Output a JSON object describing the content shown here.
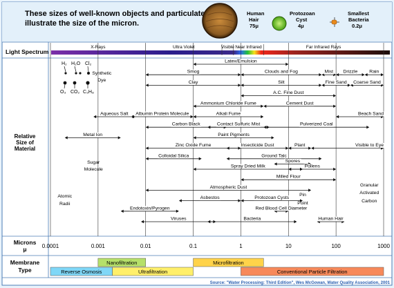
{
  "header": {
    "title_line1": "These sizes of well-known objects and particulates",
    "title_line2": "illustrate the size of the micron.",
    "examples": [
      {
        "name": "hair",
        "label1": "Human",
        "label2": "Hair",
        "size": "75μ",
        "color": "#8a5a22"
      },
      {
        "name": "cyst",
        "label1": "Protozoan",
        "label2": "Cyst",
        "size": "4μ",
        "color": "#7ed321"
      },
      {
        "name": "bacteria",
        "label1": "Smallest",
        "label2": "Bacteria",
        "size": "0.2μ",
        "color": "#e88a1c"
      }
    ]
  },
  "left_labels": {
    "light_spectrum": "Light Spectrum",
    "relative_size": [
      "Relative",
      "Size of",
      "Material"
    ],
    "microns": [
      "Microns",
      "μ"
    ],
    "membrane": [
      "Membrane",
      "Type"
    ]
  },
  "spectrum_bands": [
    {
      "label": "X-Rays",
      "from": 0.0001,
      "to": 0.01
    },
    {
      "label": "Ultra Violet",
      "from": 0.01,
      "to": 0.4
    },
    {
      "label": "Visible",
      "from": 0.4,
      "to": 0.7
    },
    {
      "label": "Near Infrared",
      "from": 0.7,
      "to": 3
    },
    {
      "label": "Far Infrared Rays",
      "from": 3,
      "to": 1000
    }
  ],
  "molecules": {
    "top": [
      "H₂",
      "H₂O",
      "Cl₂"
    ],
    "bottom": [
      "O₃",
      "CO₂",
      "C₃H₈"
    ]
  },
  "axis_ticks": [
    {
      "value": 0.0001,
      "label": "0.0001"
    },
    {
      "value": 0.001,
      "label": "0.001"
    },
    {
      "value": 0.01,
      "label": "0.01"
    },
    {
      "value": 0.1,
      "label": "0.1"
    },
    {
      "value": 1,
      "label": "1"
    },
    {
      "value": 10,
      "label": "10"
    },
    {
      "value": 100,
      "label": "100"
    },
    {
      "value": 1000,
      "label": "1000"
    }
  ],
  "materials": [
    {
      "label": "Latex/Emulsion",
      "from": 0.1,
      "to": 10,
      "row": 0,
      "align": "center"
    },
    {
      "label": "Smog",
      "from": 0.01,
      "to": 1,
      "row": 1,
      "align": "center"
    },
    {
      "label": "Clouds and Fog",
      "from": 1,
      "to": 50,
      "row": 1,
      "align": "center"
    },
    {
      "label": "Mist",
      "from": 50,
      "to": 100,
      "row": 1,
      "align": "center"
    },
    {
      "label": "Drizzle",
      "from": 100,
      "to": 400,
      "row": 1,
      "align": "center"
    },
    {
      "label": "Rain",
      "from": 400,
      "to": 1000,
      "row": 1,
      "align": "center"
    },
    {
      "label": "Clay",
      "from": 0.01,
      "to": 1,
      "row": 2,
      "align": "center"
    },
    {
      "label": "Silt",
      "from": 1,
      "to": 50,
      "row": 2,
      "align": "center"
    },
    {
      "label": "Fine Sand",
      "from": 50,
      "to": 200,
      "row": 2,
      "align": "center"
    },
    {
      "label": "Coarse Sand",
      "from": 200,
      "to": 1000,
      "row": 2,
      "align": "center"
    },
    {
      "label": "A.C. Fine Dust",
      "from": 1,
      "to": 100,
      "row": 3,
      "align": "center"
    },
    {
      "label": "Ammonium Chloride Fume",
      "from": 0.1,
      "to": 3,
      "row": 4,
      "align": "center"
    },
    {
      "label": "Cement Dust",
      "from": 3,
      "to": 100,
      "row": 4,
      "align": "center"
    },
    {
      "label": "Aqueous Salt",
      "from": 0.0008,
      "to": 0.006,
      "row": 5,
      "align": "center"
    },
    {
      "label": "Albumin Protein Molecule",
      "from": 0.005,
      "to": 0.1,
      "row": 5,
      "align": "center"
    },
    {
      "label": "Alkali Fume",
      "from": 0.1,
      "to": 3,
      "row": 5,
      "align": "center"
    },
    {
      "label": "Beach Sand",
      "from": 100,
      "to": 1000,
      "row": 5,
      "align": "right"
    },
    {
      "label": "Carbon Black",
      "from": 0.01,
      "to": 0.5,
      "row": 6,
      "align": "center"
    },
    {
      "label": "Contact Sulfuric Mist",
      "from": 0.2,
      "to": 4,
      "row": 6,
      "align": "center"
    },
    {
      "label": "Pulverized Coal",
      "from": 3,
      "to": 500,
      "row": 6,
      "align": "center"
    },
    {
      "label": "Metal Ion",
      "from": 0.0002,
      "to": 0.003,
      "row": 7,
      "align": "center"
    },
    {
      "label": "Paint Pigments",
      "from": 0.1,
      "to": 5,
      "row": 7,
      "align": "center"
    },
    {
      "label": "Zinc Oxide Fume",
      "from": 0.01,
      "to": 1,
      "row": 8,
      "align": "center"
    },
    {
      "label": "Insecticide Dust",
      "from": 0.5,
      "to": 10,
      "row": 8,
      "align": "center"
    },
    {
      "label": "Plant",
      "from": 10,
      "to": 30,
      "row": 8,
      "align": "center"
    },
    {
      "label": "Visible to Eye",
      "from": 30,
      "to": 1000,
      "row": 8,
      "align": "right"
    },
    {
      "label": "Colloidal Silica",
      "from": 0.01,
      "to": 0.15,
      "row": 9,
      "align": "center"
    },
    {
      "label": "Ground Talc",
      "from": 0.5,
      "to": 50,
      "row": 9,
      "align": "center"
    },
    {
      "label": "Spores",
      "from": 5,
      "to": 30,
      "row": 9.5,
      "align": "center"
    },
    {
      "label": "Spray Dried Milk",
      "from": 0.1,
      "to": 20,
      "row": 10,
      "align": "center"
    },
    {
      "label": "Pollens",
      "from": 10,
      "to": 100,
      "row": 10,
      "align": "center"
    },
    {
      "label": "Milled Flour",
      "from": 1,
      "to": 100,
      "row": 11,
      "align": "center"
    },
    {
      "label": "Atmospheric Dust",
      "from": 0.01,
      "to": 30,
      "row": 12,
      "align": "center"
    },
    {
      "label": "Asbestos",
      "from": 0.05,
      "to": 1,
      "row": 13,
      "align": "center"
    },
    {
      "label": "Protozoan Cysts",
      "from": 1,
      "to": 20,
      "row": 13,
      "align": "center"
    },
    {
      "label": "Endotoxin/Pyrogen",
      "from": 0.003,
      "to": 0.05,
      "row": 14,
      "align": "center"
    },
    {
      "label": "Red Blood Cell Diameter",
      "from": 5,
      "to": 10,
      "row": 14,
      "align": "center"
    },
    {
      "label": "Viruses",
      "from": 0.008,
      "to": 0.3,
      "row": 15,
      "align": "center"
    },
    {
      "label": "Bacteria",
      "from": 0.2,
      "to": 15,
      "row": 15,
      "align": "center"
    },
    {
      "label": "Human Hair",
      "from": 40,
      "to": 150,
      "row": 15,
      "align": "center"
    }
  ],
  "static_labels": [
    {
      "label": "Synthetic",
      "value": 0.0012
    },
    {
      "label": "Dye",
      "value": 0.0012
    },
    {
      "label": "Sugar",
      "value": 0.0008
    },
    {
      "label": "Molecule",
      "value": 0.0008
    },
    {
      "label": "Atomic",
      "value": 0.0002
    },
    {
      "label": "Radii",
      "value": 0.0002
    },
    {
      "label": "Pin",
      "value": 20
    },
    {
      "label": "Point",
      "value": 20
    },
    {
      "label": "Granular",
      "value": 500
    },
    {
      "label": "Activated",
      "value": 500
    },
    {
      "label": "Carbon",
      "value": 500
    }
  ],
  "membranes": [
    {
      "label": "Nanofiltration",
      "from": 0.001,
      "to": 0.01,
      "row": 0,
      "color": "#b6e06a"
    },
    {
      "label": "Microfiltration",
      "from": 0.1,
      "to": 3,
      "row": 0,
      "color": "#ffd34a"
    },
    {
      "label": "Reverse Osmosis",
      "from": 0.0001,
      "to": 0.002,
      "row": 1,
      "color": "#7fd7f7"
    },
    {
      "label": "Ultrafiltration",
      "from": 0.002,
      "to": 0.1,
      "row": 1,
      "color": "#ffef6a"
    },
    {
      "label": "Conventional Particle Filtration",
      "from": 1,
      "to": 1000,
      "row": 1,
      "color": "#f7895a"
    }
  ],
  "source": "Source: \"Water Processing: Third Edition\", Wes McGowan, Water Quality Association, 2001"
}
